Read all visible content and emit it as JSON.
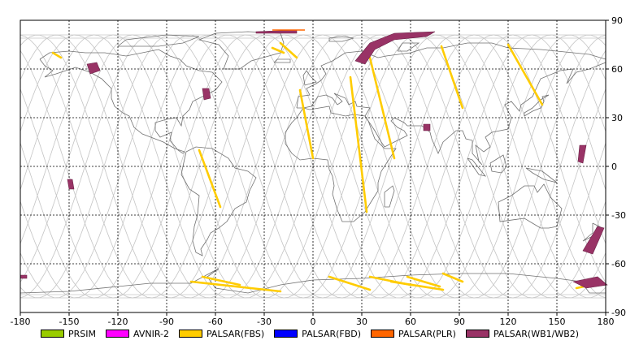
{
  "map": {
    "lon_ticks": [
      "-180",
      "-150",
      "-120",
      "-90",
      "-60",
      "-30",
      "0",
      "30",
      "60",
      "90",
      "120",
      "150",
      "180"
    ],
    "lat_ticks": [
      "90",
      "60",
      "30",
      "0",
      "-30",
      "-60",
      "-90"
    ],
    "lon_range": [
      -180,
      180
    ],
    "lat_range": [
      -90,
      90
    ],
    "grid": true,
    "colors": {
      "grid": "#000000",
      "coast": "#707070",
      "orbit": "#c8c8c8",
      "fbs": "#ffcc00",
      "wb": "#993366",
      "plr": "#ff6600"
    }
  },
  "legend": [
    {
      "label": "PRSIM",
      "color": "#99cc00"
    },
    {
      "label": "AVNIR-2",
      "color": "#ff00ff"
    },
    {
      "label": "PALSAR(FBS)",
      "color": "#ffcc00"
    },
    {
      "label": "PALSAR(FBD)",
      "color": "#0000ff"
    },
    {
      "label": "PALSAR(PLR)",
      "color": "#ff6600"
    },
    {
      "label": "PALSAR(WB1/WB2)",
      "color": "#993366"
    }
  ]
}
